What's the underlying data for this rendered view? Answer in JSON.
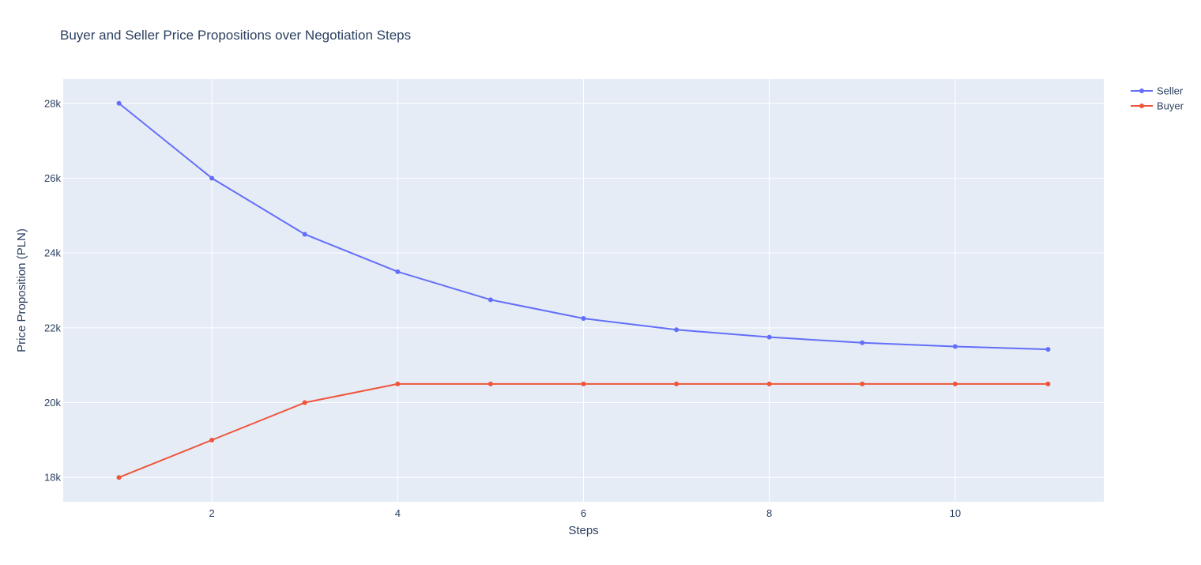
{
  "chart_data": {
    "type": "line",
    "title": "Buyer and Seller Price Propositions over Negotiation Steps",
    "xlabel": "Steps",
    "ylabel": "Price Proposition (PLN)",
    "xlim": [
      0.4,
      11.6
    ],
    "ylim": [
      17350,
      28650
    ],
    "x_ticks": [
      2,
      4,
      6,
      8,
      10
    ],
    "x_tick_labels": [
      "2",
      "4",
      "6",
      "8",
      "10"
    ],
    "y_ticks": [
      18000,
      20000,
      22000,
      24000,
      26000,
      28000
    ],
    "y_tick_labels": [
      "18k",
      "20k",
      "22k",
      "24k",
      "26k",
      "28k"
    ],
    "grid": true,
    "legend_position": "top-right, outside plot",
    "plot_background": "#e5ecf6",
    "grid_color": "#ffffff",
    "x": [
      1,
      2,
      3,
      4,
      5,
      6,
      7,
      8,
      9,
      10,
      11
    ],
    "series": [
      {
        "name": "Seller",
        "color": "#636efa",
        "values": [
          28000,
          26000,
          24500,
          23500,
          22750,
          22250,
          21950,
          21750,
          21600,
          21500,
          21425
        ]
      },
      {
        "name": "Buyer",
        "color": "#ef553b",
        "values": [
          18000,
          19000,
          20000,
          20500,
          20500,
          20500,
          20500,
          20500,
          20500,
          20500,
          20500
        ]
      }
    ]
  }
}
